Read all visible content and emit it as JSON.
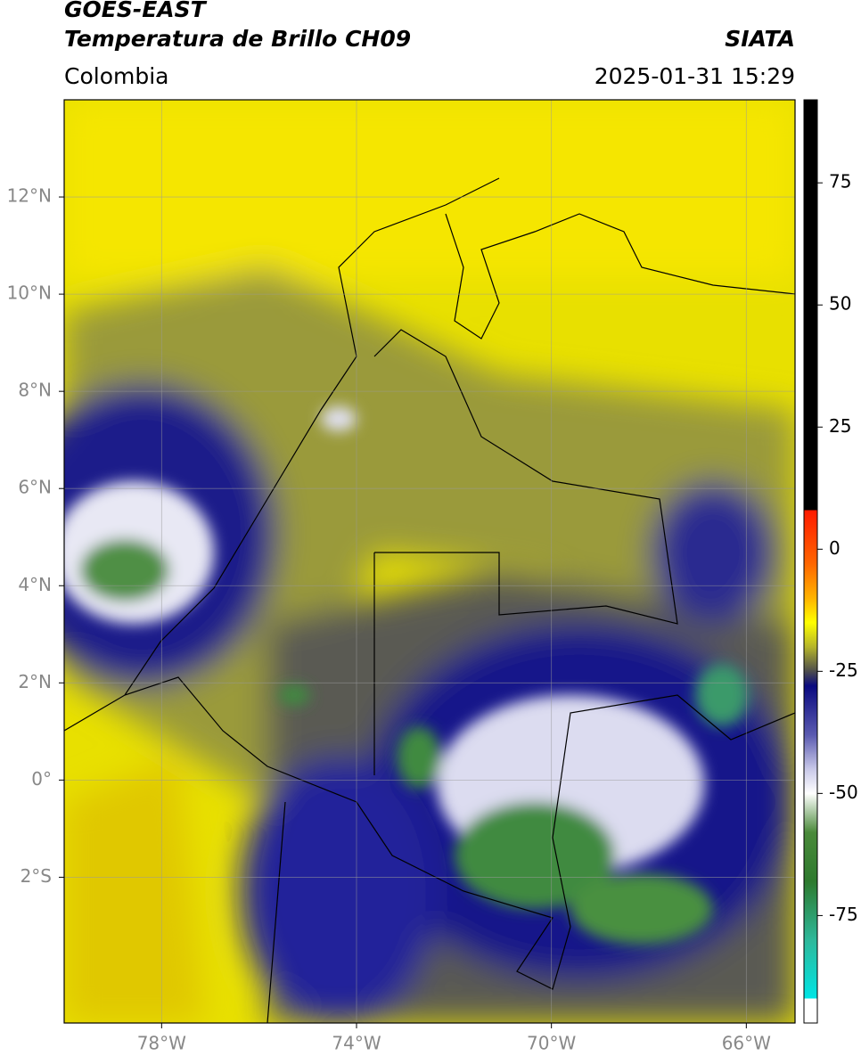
{
  "header": {
    "title": "GOES-EAST",
    "subtitle": "Temperatura de Brillo CH09",
    "source": "SIATA",
    "region": "Colombia",
    "timestamp": "2025-01-31 15:29"
  },
  "map": {
    "xlim": [
      -80,
      -65
    ],
    "ylim": [
      -5,
      14
    ],
    "xticks": [
      {
        "value": -78,
        "label": "78°W"
      },
      {
        "value": -74,
        "label": "74°W"
      },
      {
        "value": -70,
        "label": "70°W"
      },
      {
        "value": -66,
        "label": "66°W"
      }
    ],
    "yticks": [
      {
        "value": -2,
        "label": "2°S"
      },
      {
        "value": 0,
        "label": "0°"
      },
      {
        "value": 2,
        "label": "2°N"
      },
      {
        "value": 4,
        "label": "4°N"
      },
      {
        "value": 6,
        "label": "6°N"
      },
      {
        "value": 8,
        "label": "8°N"
      },
      {
        "value": 10,
        "label": "10°N"
      },
      {
        "value": 12,
        "label": "12°N"
      }
    ],
    "grid": true
  },
  "colorbar": {
    "lim": [
      -97,
      92
    ],
    "ticks": [
      75,
      50,
      25,
      0,
      -25,
      -50,
      -75
    ],
    "stops": [
      {
        "value": 92,
        "color": "#000000"
      },
      {
        "value": 8,
        "color": "#000000"
      },
      {
        "value": 8,
        "color": "#ff1a00"
      },
      {
        "value": -3,
        "color": "#ff6600"
      },
      {
        "value": -10,
        "color": "#ffb300"
      },
      {
        "value": -15,
        "color": "#ffff00"
      },
      {
        "value": -20,
        "color": "#b5b52a"
      },
      {
        "value": -25,
        "color": "#4d4d4d"
      },
      {
        "value": -28,
        "color": "#0a0a80"
      },
      {
        "value": -38,
        "color": "#5a5ab0"
      },
      {
        "value": -45,
        "color": "#c8c8e8"
      },
      {
        "value": -50,
        "color": "#ffffff"
      },
      {
        "value": -58,
        "color": "#4a8a3a"
      },
      {
        "value": -68,
        "color": "#2e7a2e"
      },
      {
        "value": -80,
        "color": "#2eb89a"
      },
      {
        "value": -92,
        "color": "#00e5e5"
      },
      {
        "value": -92,
        "color": "#ffffff"
      },
      {
        "value": -97,
        "color": "#ffffff"
      }
    ]
  }
}
